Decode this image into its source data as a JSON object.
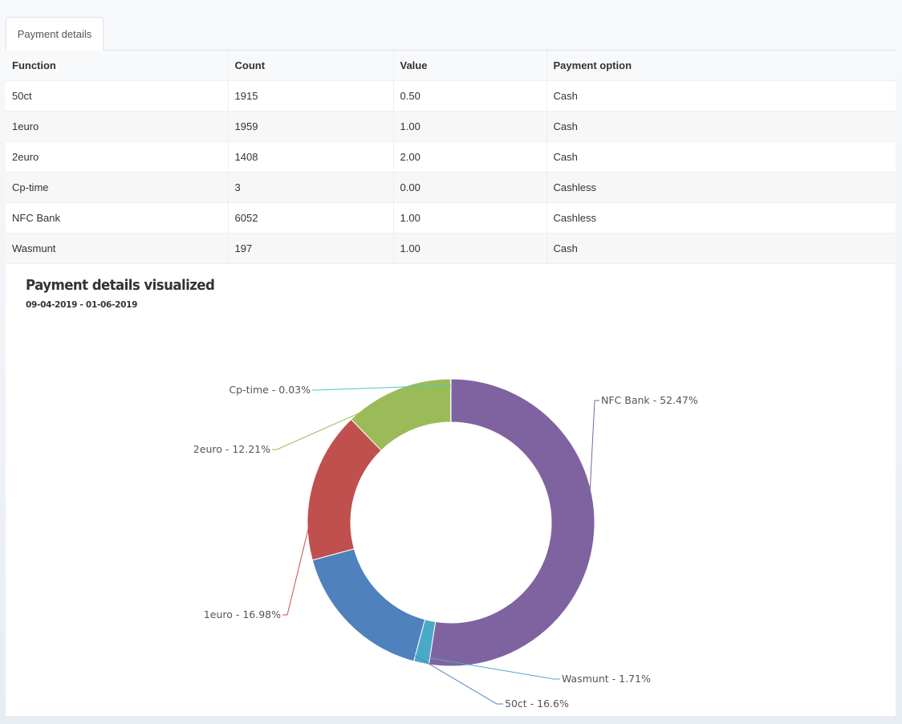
{
  "tab": {
    "label": "Payment details"
  },
  "table": {
    "headers": [
      "Function",
      "Count",
      "Value",
      "Payment option"
    ],
    "rows": [
      [
        "50ct",
        "1915",
        "0.50",
        "Cash"
      ],
      [
        "1euro",
        "1959",
        "1.00",
        "Cash"
      ],
      [
        "2euro",
        "1408",
        "2.00",
        "Cash"
      ],
      [
        "Cp-time",
        "3",
        "0.00",
        "Cashless"
      ],
      [
        "NFC Bank",
        "6052",
        "1.00",
        "Cashless"
      ],
      [
        "Wasmunt",
        "197",
        "1.00",
        "Cash"
      ]
    ]
  },
  "chart_data": {
    "type": "pie",
    "variant": "donut",
    "title": "Payment details visualized",
    "subtitle": "09-04-2019 - 01-06-2019",
    "slices": [
      {
        "name": "NFC Bank",
        "value": 52.47,
        "label": "NFC Bank - 52.47%",
        "color": "#7f63a0"
      },
      {
        "name": "Wasmunt",
        "value": 1.71,
        "label": "Wasmunt - 1.71%",
        "color": "#4aaac6"
      },
      {
        "name": "50ct",
        "value": 16.6,
        "label": "50ct - 16.6%",
        "color": "#4f81bd"
      },
      {
        "name": "1euro",
        "value": 16.98,
        "label": "1euro - 16.98%",
        "color": "#c0504d"
      },
      {
        "name": "2euro",
        "value": 12.21,
        "label": "2euro - 12.21%",
        "color": "#9bbb59"
      },
      {
        "name": "Cp-time",
        "value": 0.03,
        "label": "Cp-time - 0.03%",
        "color": "#4bc6c6"
      }
    ]
  }
}
